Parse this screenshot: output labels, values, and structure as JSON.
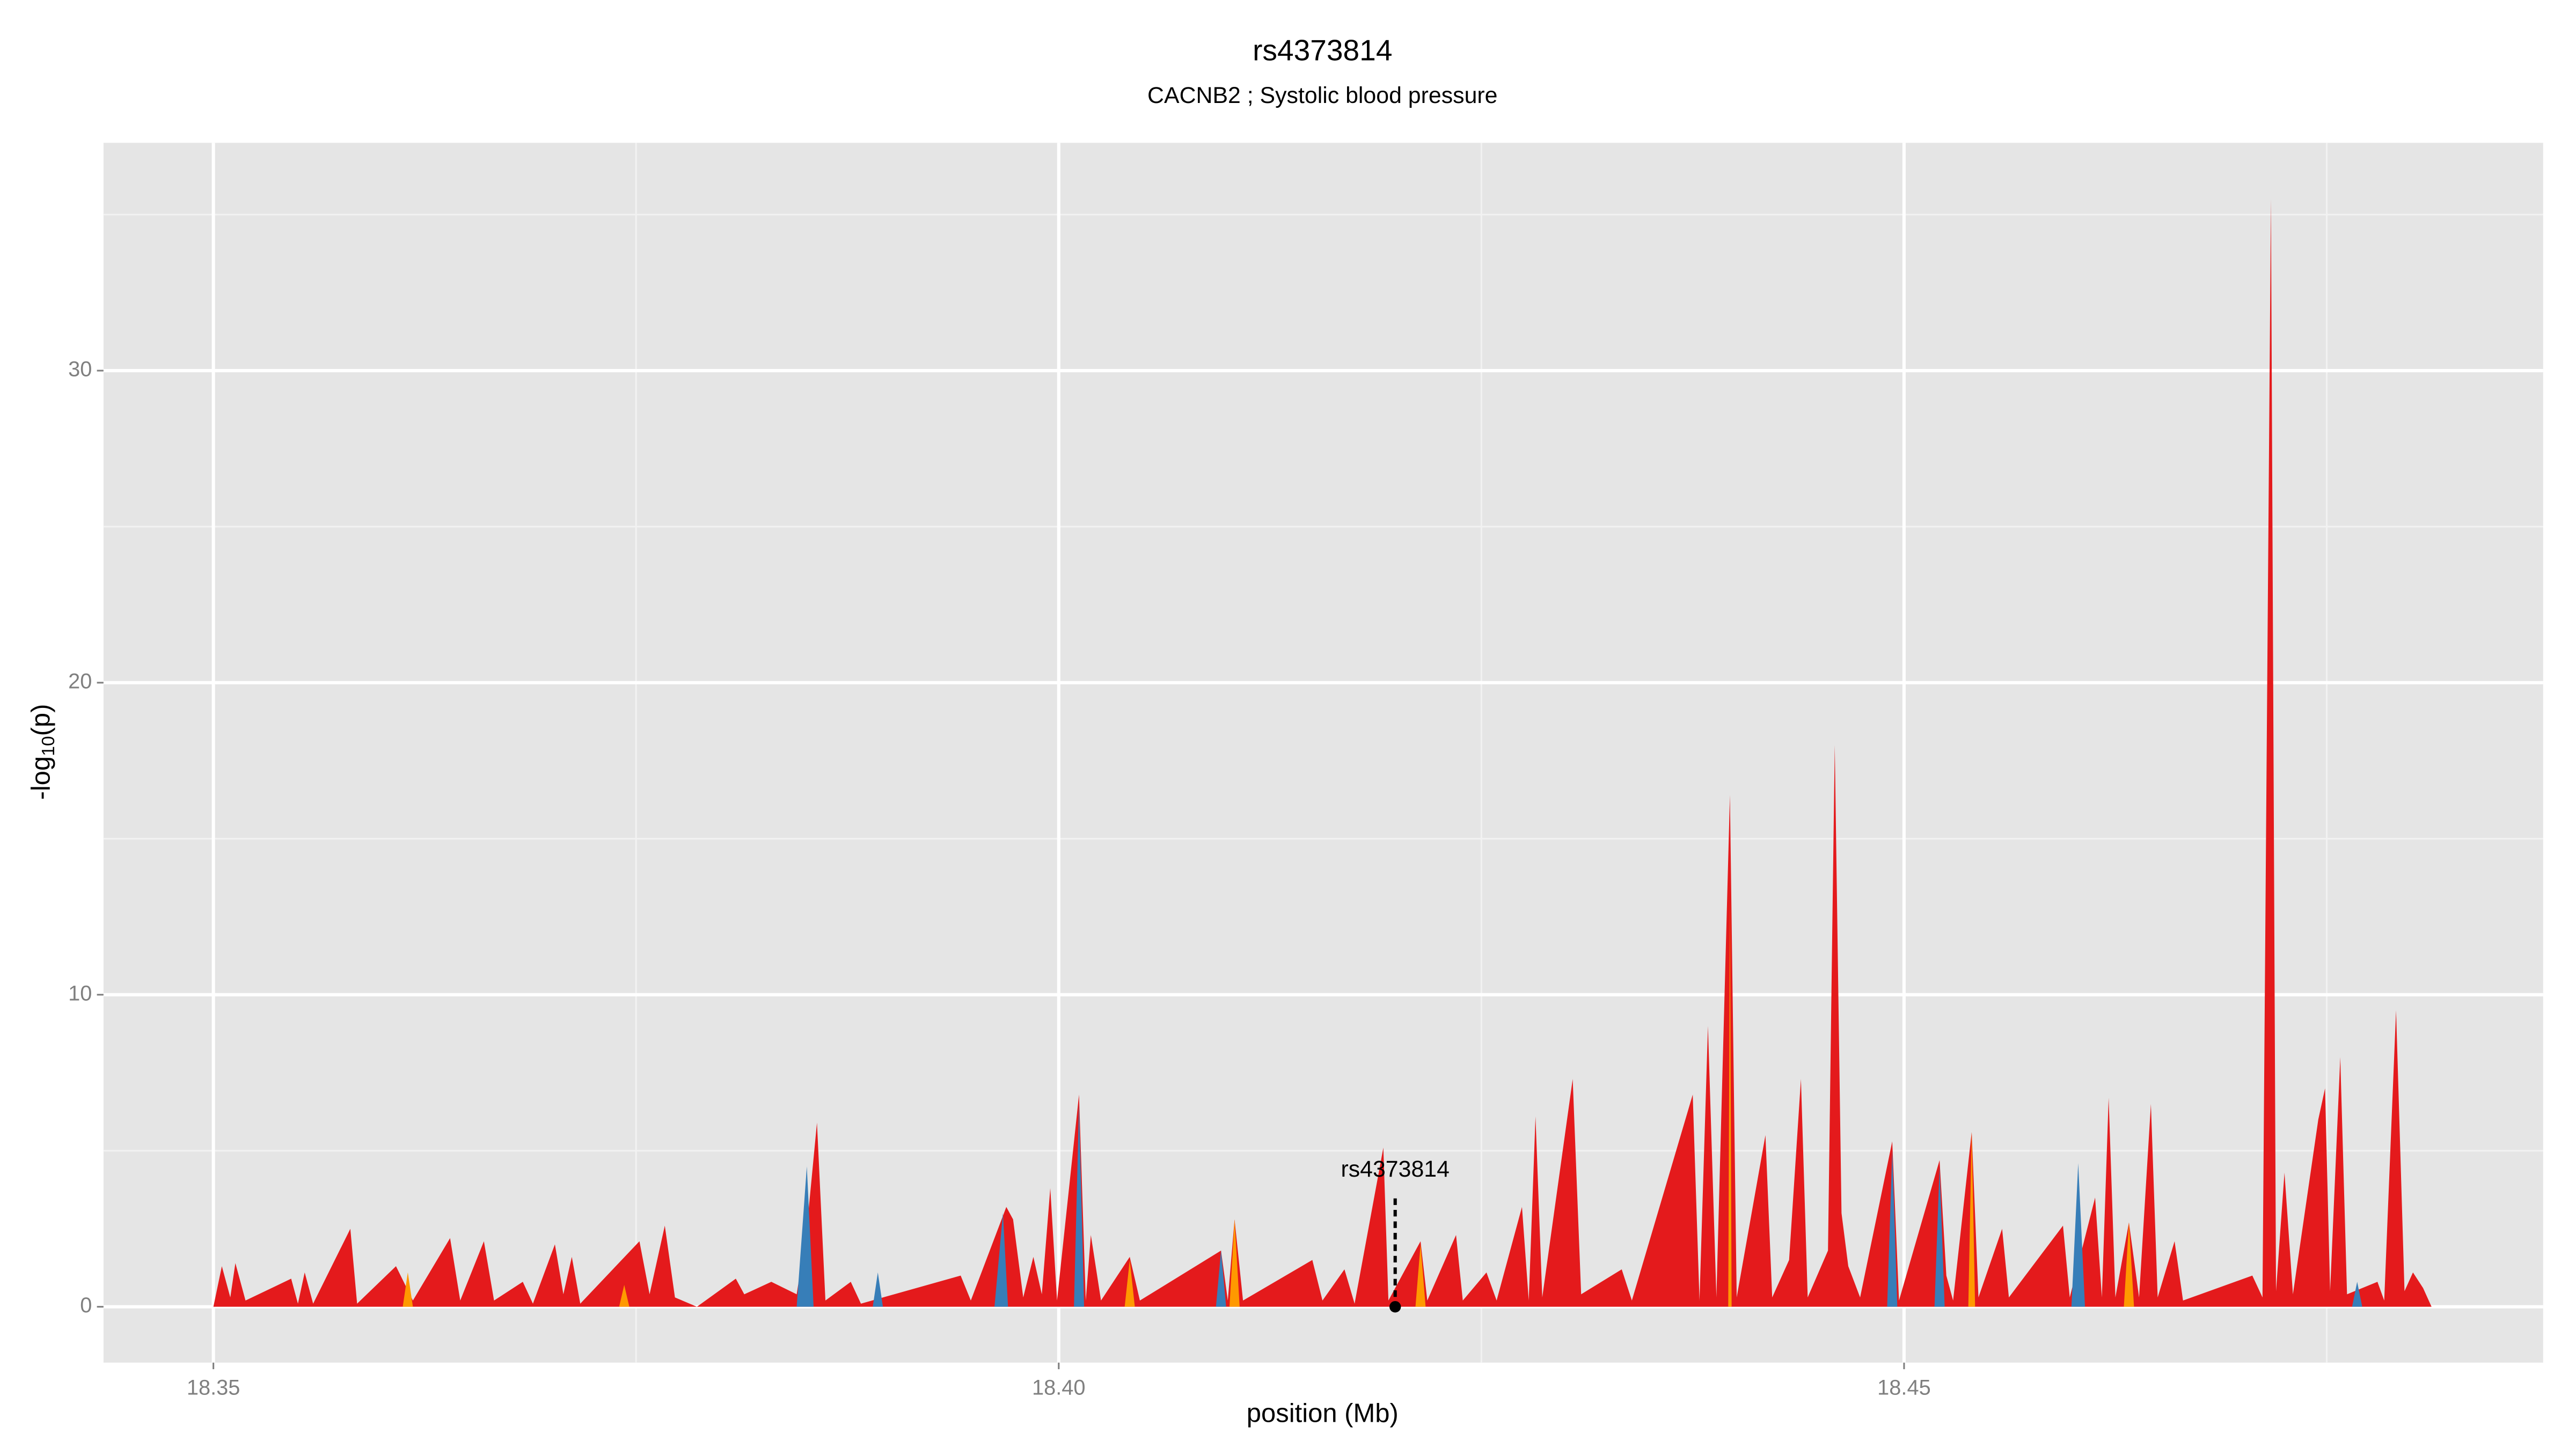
{
  "chart_data": {
    "type": "area",
    "title": "rs4373814",
    "subtitle": "CACNB2 ; Systolic blood pressure",
    "x_label": "position (Mb)",
    "y_label": {
      "main": "-log",
      "sub": "10",
      "tail": "(p)"
    },
    "xlim": [
      18.3435,
      18.4878
    ],
    "ylim": [
      -1.79,
      37.3
    ],
    "xticks": [
      {
        "value": 18.35,
        "label": "18.35"
      },
      {
        "value": 18.4,
        "label": "18.40"
      },
      {
        "value": 18.45,
        "label": "18.45"
      }
    ],
    "x_minor_grid": [
      18.375,
      18.425,
      18.475
    ],
    "yticks": [
      0,
      10,
      20,
      30
    ],
    "y_minor_grid": [
      5,
      15,
      25,
      35
    ],
    "grid": true,
    "background": "#e5e5e5",
    "series": [
      {
        "color": "#e41a1c",
        "x": [
          18.35,
          18.3505,
          18.351,
          18.3513,
          18.3519,
          18.3546,
          18.355,
          18.3554,
          18.3559,
          18.3581,
          18.3585,
          18.3608,
          18.3618,
          18.364,
          18.3646,
          18.366,
          18.3666,
          18.3683,
          18.3689,
          18.3702,
          18.3707,
          18.3712,
          18.3717,
          18.3752,
          18.3758,
          18.3767,
          18.3773,
          18.3786,
          18.3809,
          18.3814,
          18.383,
          18.3845,
          18.3851,
          18.3857,
          18.3862,
          18.3877,
          18.3883,
          18.3942,
          18.3948,
          18.3969,
          18.3973,
          18.3979,
          18.3985,
          18.399,
          18.3995,
          18.3999,
          18.4012,
          18.4016,
          18.4019,
          18.4025,
          18.4042,
          18.4048,
          18.4096,
          18.41,
          18.4104,
          18.4109,
          18.415,
          18.4156,
          18.4169,
          18.4175,
          18.4192,
          18.4195,
          18.4214,
          18.4218,
          18.4235,
          18.4239,
          18.4253,
          18.4259,
          18.4274,
          18.4278,
          18.4282,
          18.4286,
          18.4304,
          18.4309,
          18.4333,
          18.4339,
          18.4375,
          18.4379,
          18.4384,
          18.4389,
          18.4397,
          18.4401,
          18.4418,
          18.4422,
          18.4432,
          18.4439,
          18.4443,
          18.4455,
          18.4459,
          18.4463,
          18.4467,
          18.4474,
          18.4493,
          18.4497,
          18.4521,
          18.4525,
          18.4529,
          18.454,
          18.4544,
          18.4558,
          18.4562,
          18.4594,
          18.4598,
          18.4613,
          18.4617,
          18.4621,
          18.4625,
          18.4633,
          18.4639,
          18.4646,
          18.465,
          18.466,
          18.4665,
          18.4706,
          18.4712,
          18.4717,
          18.472,
          18.4725,
          18.473,
          18.4745,
          18.4749,
          18.4752,
          18.4758,
          18.4762,
          18.478,
          18.4784,
          18.4791,
          18.4796,
          18.4801,
          18.4807,
          18.4812
        ],
        "values": [
          0,
          1.3,
          0.3,
          1.4,
          0.2,
          0.9,
          0.1,
          1.1,
          0.1,
          2.5,
          0.1,
          1.3,
          0.2,
          2.2,
          0.2,
          2.1,
          0.2,
          0.8,
          0.1,
          2.0,
          0.4,
          1.6,
          0.1,
          2.1,
          0.4,
          2.6,
          0.3,
          0,
          0.9,
          0.4,
          0.8,
          0.4,
          2.5,
          5.9,
          0.2,
          0.8,
          0.1,
          1.0,
          0.2,
          3.2,
          2.8,
          0.3,
          1.6,
          0.4,
          3.8,
          0.2,
          6.8,
          0.2,
          2.3,
          0.2,
          1.6,
          0.2,
          1.8,
          0.2,
          2.8,
          0.2,
          1.5,
          0.2,
          1.2,
          0.1,
          5.1,
          0.2,
          2.1,
          0.2,
          2.3,
          0.2,
          1.1,
          0.2,
          3.2,
          0.2,
          6.1,
          0.3,
          7.3,
          0.4,
          1.2,
          0.2,
          6.8,
          0.2,
          9.0,
          0.3,
          16.4,
          0.3,
          5.5,
          0.3,
          1.5,
          7.3,
          0.3,
          1.8,
          18.0,
          3.0,
          1.3,
          0.3,
          5.3,
          0.2,
          4.7,
          1.0,
          0.2,
          5.6,
          0.3,
          2.5,
          0.3,
          2.6,
          0.3,
          3.5,
          0.3,
          6.7,
          0.3,
          2.7,
          0.3,
          6.5,
          0.3,
          2.1,
          0.2,
          1.0,
          0.3,
          35.5,
          0.5,
          4.3,
          0.4,
          6.0,
          7.0,
          0.5,
          8.0,
          0.4,
          0.8,
          0.2,
          9.5,
          0.5,
          1.1,
          0.6,
          0
        ]
      },
      {
        "color": "#377eb8",
        "x": [
          18.3845,
          18.3851,
          18.3855,
          null,
          18.389,
          18.3893,
          18.3896,
          null,
          18.3962,
          18.3967,
          18.397,
          null,
          18.4009,
          18.4012,
          18.4015,
          null,
          18.4093,
          18.4096,
          18.4099,
          null,
          18.449,
          18.4493,
          18.4496,
          null,
          18.4518,
          18.4521,
          18.4524,
          null,
          18.4599,
          18.4603,
          18.4607,
          null,
          18.4765,
          18.4768,
          18.4771
        ],
        "values": [
          0,
          4.5,
          0,
          null,
          0,
          1.1,
          0,
          null,
          0,
          3.0,
          0,
          null,
          0,
          6.5,
          0,
          null,
          0,
          1.8,
          0,
          null,
          0,
          5.0,
          0,
          null,
          0,
          4.5,
          0,
          null,
          0,
          4.6,
          0,
          null,
          0,
          0.8,
          0
        ]
      },
      {
        "color": "#ff9900",
        "x": [
          18.3612,
          18.3615,
          18.3618,
          null,
          18.374,
          18.3743,
          18.3746,
          null,
          18.4039,
          18.4042,
          18.4045,
          null,
          18.4101,
          18.4104,
          18.4107,
          null,
          18.4211,
          18.4214,
          18.4217,
          null,
          18.4396,
          18.4397,
          18.4398,
          null,
          18.4538,
          18.454,
          18.4542,
          null,
          18.463,
          18.4633,
          18.4636
        ],
        "values": [
          0,
          1.1,
          0,
          null,
          0,
          0.7,
          0,
          null,
          0,
          1.5,
          0,
          null,
          0,
          2.8,
          0,
          null,
          0,
          2.0,
          0,
          null,
          0,
          13.0,
          0,
          null,
          0,
          5.6,
          0,
          null,
          0,
          2.7,
          0
        ]
      }
    ],
    "annotation": {
      "text": "rs4373814",
      "x": 18.4199,
      "y": 0
    }
  }
}
